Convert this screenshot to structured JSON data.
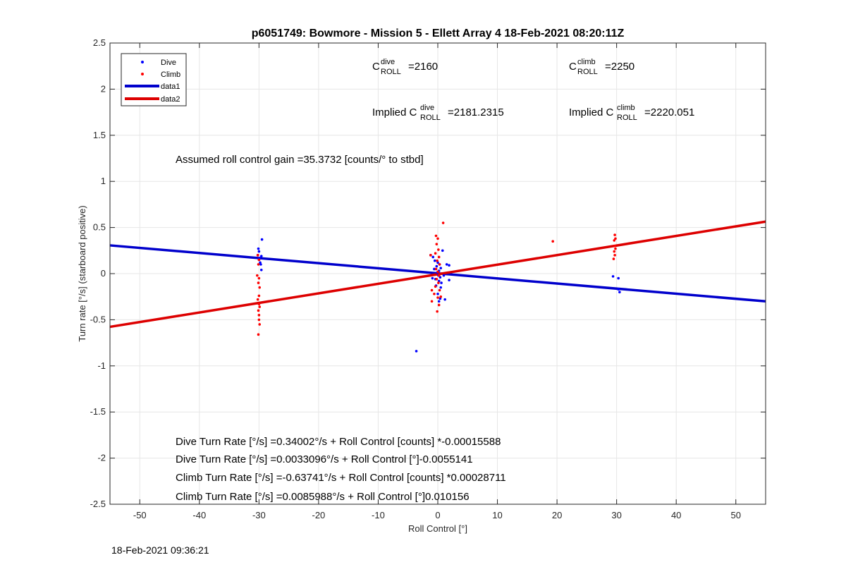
{
  "chart_data": {
    "type": "scatter",
    "title": "p6051749: Bowmore - Mission 5 - Ellett Array 4 18-Feb-2021 08:20:11Z",
    "xlabel": "Roll Control [°]",
    "ylabel": "Turn rate [°/s] (starboard positive)",
    "xlim": [
      -55,
      55
    ],
    "ylim": [
      -2.5,
      2.5
    ],
    "xticks": [
      -50,
      -40,
      -30,
      -20,
      -10,
      0,
      10,
      20,
      30,
      40,
      50
    ],
    "yticks": [
      -2.5,
      -2,
      -1.5,
      -1,
      -0.5,
      0,
      0.5,
      1,
      1.5,
      2,
      2.5
    ],
    "grid": true,
    "legend_position": "top-left",
    "series": [
      {
        "name": "Dive",
        "kind": "points",
        "color": "#0000ff",
        "points": [
          [
            -30.1,
            0.27
          ],
          [
            -30.0,
            0.24
          ],
          [
            -30.2,
            0.2
          ],
          [
            -29.9,
            0.17
          ],
          [
            -30.0,
            0.15
          ],
          [
            -29.5,
            0.37
          ],
          [
            -29.6,
            0.19
          ],
          [
            -29.7,
            0.1
          ],
          [
            -29.6,
            0.04
          ],
          [
            -29.8,
            0.12
          ],
          [
            -1.2,
            0.2
          ],
          [
            -0.8,
            0.18
          ],
          [
            -0.5,
            0.14
          ],
          [
            0.0,
            0.12
          ],
          [
            0.3,
            0.1
          ],
          [
            -0.2,
            0.08
          ],
          [
            0.5,
            0.06
          ],
          [
            -0.6,
            0.05
          ],
          [
            0.2,
            0.03
          ],
          [
            -0.1,
            0.01
          ],
          [
            0.1,
            -0.02
          ],
          [
            0.4,
            -0.04
          ],
          [
            -0.4,
            -0.06
          ],
          [
            0.2,
            -0.08
          ],
          [
            0.6,
            -0.1
          ],
          [
            -0.3,
            -0.13
          ],
          [
            0.5,
            -0.15
          ],
          [
            0.0,
            -0.22
          ],
          [
            0.4,
            -0.27
          ],
          [
            0.2,
            -0.3
          ],
          [
            1.2,
            -0.28
          ],
          [
            0.8,
            0.25
          ],
          [
            1.5,
            0.1
          ],
          [
            1.9,
            0.09
          ],
          [
            1.9,
            -0.07
          ],
          [
            -0.9,
            -0.05
          ],
          [
            1.0,
            -0.02
          ],
          [
            -3.6,
            -0.84
          ],
          [
            29.4,
            -0.03
          ],
          [
            30.3,
            -0.05
          ],
          [
            30.3,
            -0.17
          ],
          [
            30.5,
            -0.2
          ]
        ]
      },
      {
        "name": "Climb",
        "kind": "points",
        "color": "#ff0000",
        "points": [
          [
            -30.2,
            0.2
          ],
          [
            -30.0,
            0.15
          ],
          [
            -30.1,
            0.1
          ],
          [
            -30.3,
            -0.02
          ],
          [
            -30.0,
            -0.05
          ],
          [
            -30.1,
            -0.1
          ],
          [
            -29.9,
            -0.15
          ],
          [
            -30.0,
            -0.24
          ],
          [
            -30.2,
            -0.28
          ],
          [
            -30.0,
            -0.33
          ],
          [
            -29.9,
            -0.36
          ],
          [
            -30.1,
            -0.4
          ],
          [
            -30.0,
            -0.45
          ],
          [
            -30.0,
            -0.5
          ],
          [
            -29.9,
            -0.55
          ],
          [
            -30.1,
            -0.66
          ],
          [
            -0.3,
            0.41
          ],
          [
            0.0,
            0.38
          ],
          [
            -0.2,
            0.32
          ],
          [
            0.1,
            0.26
          ],
          [
            -0.4,
            0.22
          ],
          [
            0.2,
            0.18
          ],
          [
            -0.1,
            0.14
          ],
          [
            0.3,
            0.1
          ],
          [
            -0.3,
            0.05
          ],
          [
            0.0,
            0.02
          ],
          [
            0.2,
            -0.02
          ],
          [
            -0.2,
            -0.06
          ],
          [
            0.1,
            -0.1
          ],
          [
            -0.4,
            -0.14
          ],
          [
            0.3,
            -0.18
          ],
          [
            -0.6,
            -0.22
          ],
          [
            0.0,
            -0.26
          ],
          [
            -1.0,
            -0.3
          ],
          [
            0.2,
            -0.34
          ],
          [
            -0.1,
            -0.41
          ],
          [
            0.9,
            0.55
          ],
          [
            -1.2,
            0.2
          ],
          [
            -1.0,
            -0.18
          ],
          [
            0.5,
            -0.25
          ],
          [
            19.3,
            0.35
          ],
          [
            29.7,
            0.42
          ],
          [
            29.8,
            0.38
          ],
          [
            29.6,
            0.36
          ],
          [
            29.7,
            0.3
          ],
          [
            29.8,
            0.27
          ],
          [
            29.6,
            0.24
          ],
          [
            29.7,
            0.2
          ],
          [
            29.5,
            0.16
          ]
        ]
      },
      {
        "name": "data1",
        "kind": "line",
        "color": "#0000cc",
        "x": [
          -55,
          55
        ],
        "y": [
          0.3063,
          -0.3003
        ]
      },
      {
        "name": "data2",
        "kind": "line",
        "color": "#dd0000",
        "x": [
          -55,
          55
        ],
        "y": [
          -0.5769,
          0.5641
        ]
      }
    ],
    "annotations": {
      "c_roll_dive": {
        "prefix": "C",
        "sup": "dive",
        "sub": "ROLL",
        "value": "=2160"
      },
      "c_roll_climb": {
        "prefix": "C",
        "sup": "climb",
        "sub": "ROLL",
        "value": "=2250"
      },
      "implied_dive": {
        "prefix": "Implied C",
        "sup": "dive",
        "sub": "ROLL",
        "value": "=2181.2315"
      },
      "implied_climb": {
        "prefix": "Implied C",
        "sup": "climb",
        "sub": "ROLL",
        "value": "=2220.051"
      },
      "gain": "Assumed roll control gain =35.3732 [counts/° to stbd]",
      "fits": [
        "Dive Turn Rate [°/s] =0.34002°/s + Roll Control [counts] *-0.00015588",
        "Dive Turn Rate [°/s] =0.0033096°/s + Roll Control [°]-0.0055141",
        "Climb Turn Rate [°/s] =-0.63741°/s + Roll Control [counts] *0.00028711",
        "Climb Turn Rate [°/s] =0.0085988°/s + Roll Control [°]0.010156"
      ]
    }
  },
  "footer": {
    "timestamp": "18-Feb-2021 09:36:21"
  }
}
